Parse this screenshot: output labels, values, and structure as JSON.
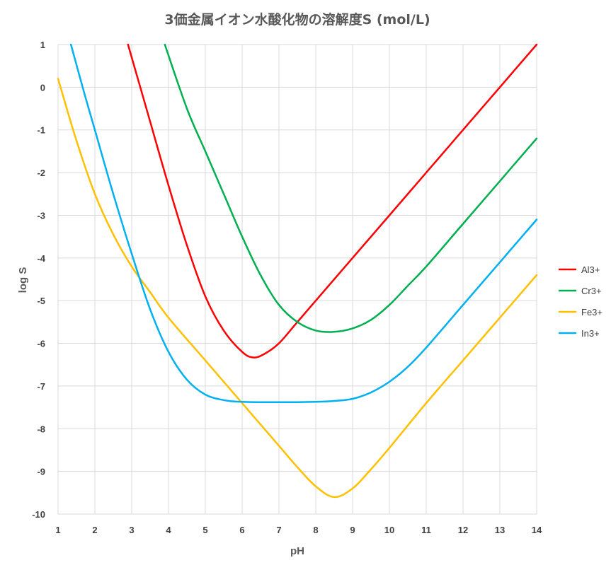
{
  "chart_data": {
    "type": "line",
    "title": "3価金属イオン水酸化物の溶解度S (mol/L)",
    "xlabel": "pH",
    "ylabel": "log S",
    "xlim": [
      1,
      14
    ],
    "ylim": [
      -10,
      1
    ],
    "x_ticks": [
      "1",
      "2",
      "3",
      "4",
      "5",
      "6",
      "7",
      "8",
      "9",
      "10",
      "11",
      "12",
      "13",
      "14"
    ],
    "y_ticks": [
      "1",
      "0",
      "-1",
      "-2",
      "-3",
      "-4",
      "-5",
      "-6",
      "-7",
      "-8",
      "-9",
      "-10"
    ],
    "grid": true,
    "legend_position": "right",
    "series": [
      {
        "name": "Al3+",
        "color": "#ff0000",
        "points": [
          [
            2.9,
            1.0
          ],
          [
            3.5,
            -0.8
          ],
          [
            4.0,
            -2.3
          ],
          [
            4.5,
            -3.7
          ],
          [
            5.0,
            -4.9
          ],
          [
            5.5,
            -5.7
          ],
          [
            6.0,
            -6.2
          ],
          [
            6.3,
            -6.33
          ],
          [
            6.6,
            -6.25
          ],
          [
            7.0,
            -6.0
          ],
          [
            7.5,
            -5.5
          ],
          [
            8.0,
            -5.0
          ],
          [
            9.0,
            -4.0
          ],
          [
            10.0,
            -3.0
          ],
          [
            11.0,
            -2.0
          ],
          [
            12.0,
            -1.0
          ],
          [
            13.0,
            0.0
          ],
          [
            14.0,
            1.0
          ]
        ]
      },
      {
        "name": "Cr3+",
        "color": "#00b050",
        "points": [
          [
            3.9,
            1.0
          ],
          [
            4.5,
            -0.5
          ],
          [
            5.0,
            -1.5
          ],
          [
            5.5,
            -2.5
          ],
          [
            6.0,
            -3.5
          ],
          [
            6.5,
            -4.4
          ],
          [
            7.0,
            -5.1
          ],
          [
            7.5,
            -5.5
          ],
          [
            8.0,
            -5.7
          ],
          [
            8.5,
            -5.73
          ],
          [
            9.0,
            -5.65
          ],
          [
            9.5,
            -5.45
          ],
          [
            10.0,
            -5.1
          ],
          [
            10.5,
            -4.65
          ],
          [
            11.0,
            -4.2
          ],
          [
            12.0,
            -3.2
          ],
          [
            13.0,
            -2.2
          ],
          [
            14.0,
            -1.2
          ]
        ]
      },
      {
        "name": "Fe3+",
        "color": "#ffc000",
        "points": [
          [
            1.0,
            0.2
          ],
          [
            1.5,
            -1.25
          ],
          [
            2.0,
            -2.5
          ],
          [
            2.5,
            -3.45
          ],
          [
            3.0,
            -4.2
          ],
          [
            3.5,
            -4.8
          ],
          [
            4.0,
            -5.4
          ],
          [
            5.0,
            -6.4
          ],
          [
            6.0,
            -7.4
          ],
          [
            7.0,
            -8.4
          ],
          [
            7.5,
            -8.9
          ],
          [
            8.0,
            -9.35
          ],
          [
            8.5,
            -9.6
          ],
          [
            9.0,
            -9.4
          ],
          [
            9.5,
            -8.95
          ],
          [
            10.0,
            -8.45
          ],
          [
            11.0,
            -7.4
          ],
          [
            12.0,
            -6.4
          ],
          [
            13.0,
            -5.4
          ],
          [
            14.0,
            -4.4
          ]
        ]
      },
      {
        "name": "In3+",
        "color": "#00b0f0",
        "points": [
          [
            1.35,
            1.0
          ],
          [
            1.7,
            -0.1
          ],
          [
            2.0,
            -1.0
          ],
          [
            2.5,
            -2.5
          ],
          [
            3.0,
            -3.9
          ],
          [
            3.5,
            -5.2
          ],
          [
            4.0,
            -6.2
          ],
          [
            4.5,
            -6.85
          ],
          [
            5.0,
            -7.2
          ],
          [
            5.5,
            -7.33
          ],
          [
            6.0,
            -7.37
          ],
          [
            7.0,
            -7.38
          ],
          [
            8.0,
            -7.37
          ],
          [
            8.5,
            -7.35
          ],
          [
            9.0,
            -7.3
          ],
          [
            9.5,
            -7.15
          ],
          [
            10.0,
            -6.9
          ],
          [
            10.5,
            -6.55
          ],
          [
            11.0,
            -6.1
          ],
          [
            12.0,
            -5.1
          ],
          [
            13.0,
            -4.1
          ],
          [
            14.0,
            -3.1
          ]
        ]
      }
    ]
  }
}
